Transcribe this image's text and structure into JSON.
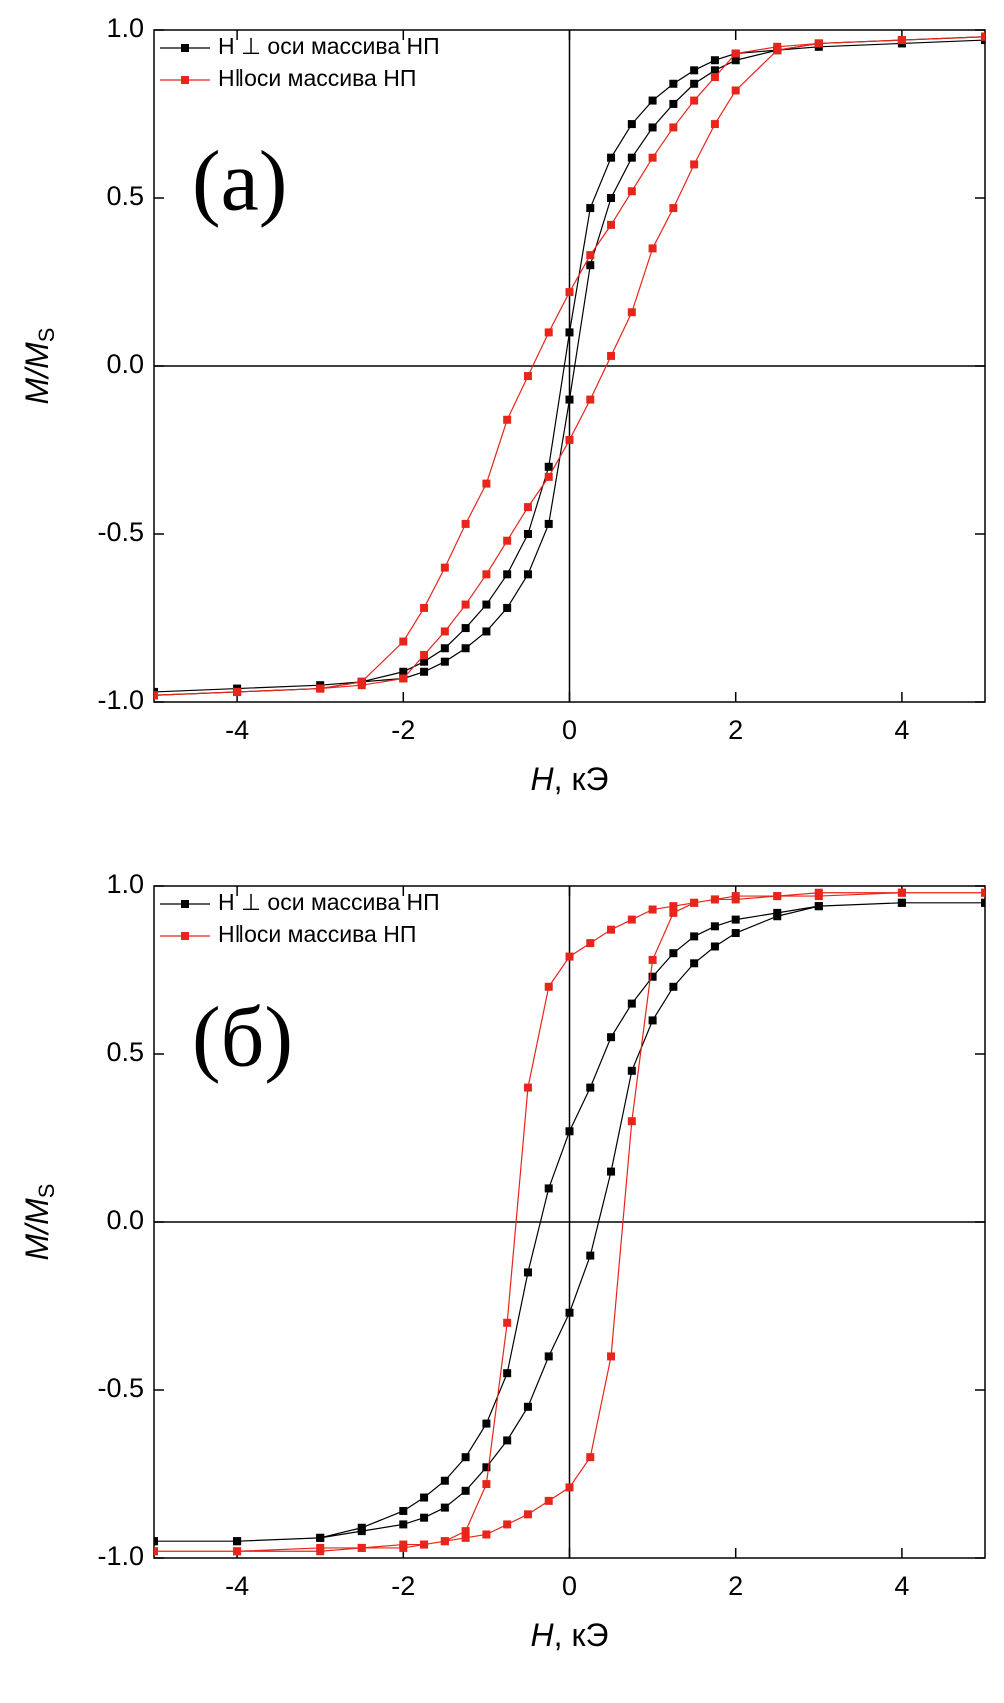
{
  "chart_data": [
    {
      "type": "line",
      "panel_label": "(а)",
      "xlabel": [
        "H",
        ", кЭ"
      ],
      "ylabel": [
        "M/M",
        "S"
      ],
      "xlim": [
        -5,
        5
      ],
      "xticks": [
        -4,
        -2,
        0,
        2,
        4
      ],
      "ylim": [
        -1,
        1
      ],
      "yticks": [
        {
          "value": -1,
          "label": "-1.0"
        },
        {
          "value": -0.5,
          "label": "-0.5"
        },
        {
          "value": 0,
          "label": "0.0"
        },
        {
          "value": 0.5,
          "label": "0.5"
        },
        {
          "value": 1,
          "label": "1.0"
        }
      ],
      "zero_lines": true,
      "legend": "upper left",
      "x": [
        5,
        4,
        3,
        2.5,
        2,
        1.75,
        1.5,
        1.25,
        1,
        0.75,
        0.5,
        0.25,
        0,
        -0.25,
        -0.5,
        -0.75,
        -1,
        -1.25,
        -1.5,
        -1.75,
        -2,
        -2.5,
        -3,
        -4,
        -5,
        -5,
        -4,
        -3,
        -2.5,
        -2,
        -1.75,
        -1.5,
        -1.25,
        -1,
        -0.75,
        -0.5,
        -0.25,
        0,
        0.25,
        0.5,
        0.75,
        1,
        1.25,
        1.5,
        1.75,
        2,
        2.5,
        3,
        4,
        5
      ],
      "series": [
        {
          "name": "H ⊥ оси массива НП",
          "color": "#000000",
          "values": [
            0.97,
            0.96,
            0.95,
            0.94,
            0.93,
            0.91,
            0.88,
            0.84,
            0.79,
            0.72,
            0.62,
            0.47,
            0.1,
            -0.3,
            -0.5,
            -0.62,
            -0.71,
            -0.78,
            -0.84,
            -0.88,
            -0.91,
            -0.94,
            -0.96,
            -0.97,
            -0.98,
            -0.97,
            -0.96,
            -0.95,
            -0.94,
            -0.93,
            -0.91,
            -0.88,
            -0.84,
            -0.79,
            -0.72,
            -0.62,
            -0.47,
            -0.1,
            0.3,
            0.5,
            0.62,
            0.71,
            0.78,
            0.84,
            0.88,
            0.91,
            0.94,
            0.96,
            0.97,
            0.98
          ]
        },
        {
          "name": "H‖оси массива НП",
          "color": "#e8251b",
          "values": [
            0.98,
            0.97,
            0.96,
            0.95,
            0.93,
            0.86,
            0.79,
            0.71,
            0.62,
            0.52,
            0.42,
            0.33,
            0.22,
            0.1,
            -0.03,
            -0.16,
            -0.35,
            -0.47,
            -0.6,
            -0.72,
            -0.82,
            -0.94,
            -0.96,
            -0.97,
            -0.98,
            -0.98,
            -0.97,
            -0.96,
            -0.95,
            -0.93,
            -0.86,
            -0.79,
            -0.71,
            -0.62,
            -0.52,
            -0.42,
            -0.33,
            -0.22,
            -0.1,
            0.03,
            0.16,
            0.35,
            0.47,
            0.6,
            0.72,
            0.82,
            0.94,
            0.96,
            0.97,
            0.98
          ]
        }
      ]
    },
    {
      "type": "line",
      "panel_label": "(б)",
      "xlabel": [
        "H",
        ", кЭ"
      ],
      "ylabel": [
        "M/M",
        "S"
      ],
      "xlim": [
        -5,
        5
      ],
      "xticks": [
        -4,
        -2,
        0,
        2,
        4
      ],
      "ylim": [
        -1,
        1
      ],
      "yticks": [
        {
          "value": -1,
          "label": "-1.0"
        },
        {
          "value": -0.5,
          "label": "-0.5"
        },
        {
          "value": 0,
          "label": "0.0"
        },
        {
          "value": 0.5,
          "label": "0.5"
        },
        {
          "value": 1,
          "label": "1.0"
        }
      ],
      "zero_lines": true,
      "legend": "upper left",
      "x": [
        5,
        4,
        3,
        2.5,
        2,
        1.75,
        1.5,
        1.25,
        1,
        0.75,
        0.5,
        0.25,
        0,
        -0.25,
        -0.5,
        -0.75,
        -1,
        -1.25,
        -1.5,
        -1.75,
        -2,
        -2.5,
        -3,
        -4,
        -5,
        -5,
        -4,
        -3,
        -2.5,
        -2,
        -1.75,
        -1.5,
        -1.25,
        -1,
        -0.75,
        -0.5,
        -0.25,
        0,
        0.25,
        0.5,
        0.75,
        1,
        1.25,
        1.5,
        1.75,
        2,
        2.5,
        3,
        4,
        5
      ],
      "series": [
        {
          "name": "H ⊥ оси массива НП",
          "color": "#000000",
          "values": [
            0.95,
            0.95,
            0.94,
            0.92,
            0.9,
            0.88,
            0.85,
            0.8,
            0.73,
            0.65,
            0.55,
            0.4,
            0.27,
            0.1,
            -0.15,
            -0.45,
            -0.6,
            -0.7,
            -0.77,
            -0.82,
            -0.86,
            -0.91,
            -0.94,
            -0.95,
            -0.95,
            -0.95,
            -0.95,
            -0.94,
            -0.92,
            -0.9,
            -0.88,
            -0.85,
            -0.8,
            -0.73,
            -0.65,
            -0.55,
            -0.4,
            -0.27,
            -0.1,
            0.15,
            0.45,
            0.6,
            0.7,
            0.77,
            0.82,
            0.86,
            0.91,
            0.94,
            0.95,
            0.95
          ]
        },
        {
          "name": "H‖оси массива НП",
          "color": "#e8251b",
          "values": [
            0.98,
            0.98,
            0.97,
            0.97,
            0.96,
            0.96,
            0.95,
            0.94,
            0.93,
            0.9,
            0.87,
            0.83,
            0.79,
            0.7,
            0.4,
            -0.3,
            -0.78,
            -0.92,
            -0.95,
            -0.96,
            -0.97,
            -0.97,
            -0.98,
            -0.98,
            -0.98,
            -0.98,
            -0.98,
            -0.97,
            -0.97,
            -0.96,
            -0.96,
            -0.95,
            -0.94,
            -0.93,
            -0.9,
            -0.87,
            -0.83,
            -0.79,
            -0.7,
            -0.4,
            0.3,
            0.78,
            0.92,
            0.95,
            0.96,
            0.97,
            0.97,
            0.98,
            0.98,
            0.98
          ]
        }
      ]
    }
  ]
}
